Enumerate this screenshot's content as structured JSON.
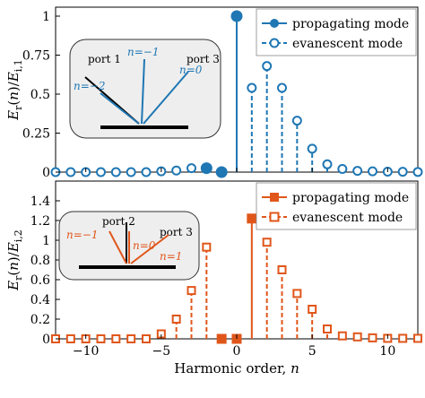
{
  "chart_data": [
    {
      "type": "stem",
      "ylabel": "E_r(n)/E_i,1",
      "ylim": [
        0,
        1
      ],
      "xlim": [
        -12,
        12
      ],
      "yticks": [
        "0",
        "0.25",
        "0.5",
        "0.75",
        "1"
      ],
      "ytick_values": [
        0,
        0.25,
        0.5,
        0.75,
        1
      ],
      "color": "#1f77b4",
      "legend": {
        "propagating": "propagating mode",
        "evanescent": "evanescent mode",
        "placement": "top-right"
      },
      "x": [
        -12,
        -11,
        -10,
        -9,
        -8,
        -7,
        -6,
        -5,
        -4,
        -3,
        -2,
        -1,
        0,
        1,
        2,
        3,
        4,
        5,
        6,
        7,
        8,
        9,
        10,
        11,
        12
      ],
      "values": [
        0,
        0,
        0,
        0,
        0,
        0,
        0,
        0.005,
        0.01,
        0.025,
        0.025,
        0,
        1,
        0.54,
        0.68,
        0.54,
        0.33,
        0.15,
        0.05,
        0.02,
        0.008,
        0.005,
        0.003,
        0.002,
        0.001
      ],
      "propagating": [
        false,
        false,
        false,
        false,
        false,
        false,
        false,
        false,
        false,
        false,
        true,
        true,
        true,
        false,
        false,
        false,
        false,
        false,
        false,
        false,
        false,
        false,
        false,
        false,
        false
      ],
      "inset": {
        "labels": [
          "port 1",
          "port 3"
        ],
        "orders": [
          "n=−2",
          "n=−1",
          "n=0"
        ],
        "colors": {
          "n=−2": "#1f77b4",
          "n=−1": "#1f77b4",
          "n=0": "#1f77b4"
        }
      }
    },
    {
      "type": "stem",
      "ylabel": "E_r(n)/E_i,2",
      "ylim": [
        0,
        1.6
      ],
      "xlim": [
        -12,
        12
      ],
      "yticks": [
        "0",
        "0.2",
        "0.4",
        "0.6",
        "0.8",
        "1",
        "1.2",
        "1.4"
      ],
      "ytick_values": [
        0,
        0.2,
        0.4,
        0.6,
        0.8,
        1,
        1.2,
        1.4
      ],
      "xticks": [
        "−10",
        "−5",
        "0",
        "5",
        "10"
      ],
      "xtick_values": [
        -10,
        -5,
        0,
        5,
        10
      ],
      "xlabel": "Harmonic order, n",
      "color": "#e0561a",
      "legend": {
        "propagating": "propagating mode",
        "evanescent": "evanescent mode",
        "placement": "top-right"
      },
      "x": [
        -12,
        -11,
        -10,
        -9,
        -8,
        -7,
        -6,
        -5,
        -4,
        -3,
        -2,
        -1,
        0,
        1,
        2,
        3,
        4,
        5,
        6,
        7,
        8,
        9,
        10,
        11,
        12
      ],
      "values": [
        0,
        0,
        0,
        0,
        0,
        0,
        0,
        0.05,
        0.2,
        0.49,
        0.93,
        0,
        0,
        1.22,
        0.98,
        0.7,
        0.46,
        0.3,
        0.1,
        0.03,
        0.02,
        0.01,
        0.005,
        0.005,
        0.005
      ],
      "propagating": [
        false,
        false,
        false,
        false,
        false,
        false,
        false,
        false,
        false,
        false,
        false,
        true,
        true,
        true,
        false,
        false,
        false,
        false,
        false,
        false,
        false,
        false,
        false,
        false,
        false
      ],
      "inset": {
        "labels": [
          "port 2",
          "port 3"
        ],
        "orders": [
          "n=−1",
          "n=0",
          "n=1"
        ],
        "colors": {
          "n=−1": "#e0561a",
          "n=0": "#e0561a",
          "n=1": "#e0561a"
        }
      }
    }
  ]
}
